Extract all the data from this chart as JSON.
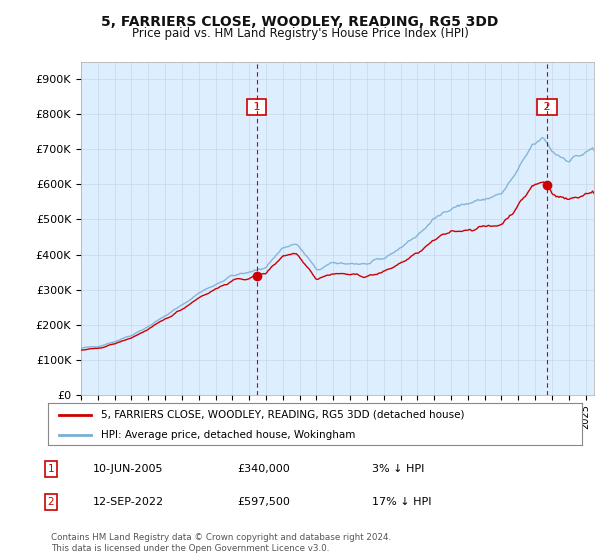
{
  "title": "5, FARRIERS CLOSE, WOODLEY, READING, RG5 3DD",
  "subtitle": "Price paid vs. HM Land Registry's House Price Index (HPI)",
  "ylabel_ticks": [
    "£0",
    "£100K",
    "£200K",
    "£300K",
    "£400K",
    "£500K",
    "£600K",
    "£700K",
    "£800K",
    "£900K"
  ],
  "ytick_values": [
    0,
    100000,
    200000,
    300000,
    400000,
    500000,
    600000,
    700000,
    800000,
    900000
  ],
  "ylim": [
    0,
    950000
  ],
  "xlim_start": 1995.0,
  "xlim_end": 2025.5,
  "sale1_date": 2005.44,
  "sale1_price": 340000,
  "sale1_label": "1",
  "sale2_date": 2022.71,
  "sale2_price": 597500,
  "sale2_label": "2",
  "hpi_color": "#7ab0d4",
  "price_color": "#cc0000",
  "marker_color": "#cc0000",
  "vline_color": "#cc0000",
  "plot_bg_color": "#ddeeff",
  "legend_line1": "5, FARRIERS CLOSE, WOODLEY, READING, RG5 3DD (detached house)",
  "legend_line2": "HPI: Average price, detached house, Wokingham",
  "annot1_date": "10-JUN-2005",
  "annot1_price": "£340,000",
  "annot1_hpi": "3% ↓ HPI",
  "annot2_date": "12-SEP-2022",
  "annot2_price": "£597,500",
  "annot2_hpi": "17% ↓ HPI",
  "footer": "Contains HM Land Registry data © Crown copyright and database right 2024.\nThis data is licensed under the Open Government Licence v3.0.",
  "background_color": "#ffffff",
  "grid_color": "#c8d8e8"
}
